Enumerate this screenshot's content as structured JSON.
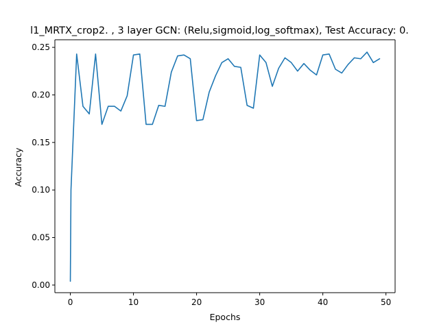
{
  "chart_data": {
    "type": "line",
    "title": "l1_MRTX_crop2. , 3 layer GCN: (Relu,sigmoid,log_softmax), Test Accuracy: 0.",
    "xlabel": "Epochs",
    "ylabel": "Accuracy",
    "xlim": [
      -2.45,
      51.45
    ],
    "ylim": [
      -0.008,
      0.258
    ],
    "xticks": [
      0,
      10,
      20,
      30,
      40,
      50
    ],
    "yticks": [
      0.0,
      0.05,
      0.1,
      0.15,
      0.2,
      0.25
    ],
    "xtick_labels": [
      "0",
      "10",
      "20",
      "30",
      "40",
      "50"
    ],
    "ytick_labels": [
      "0.00",
      "0.05",
      "0.10",
      "0.15",
      "0.20",
      "0.25"
    ],
    "grid": false,
    "color": "#1f77b4",
    "series": [
      {
        "x": [
          0,
          1,
          2,
          3,
          4,
          5,
          6,
          7,
          8,
          9,
          10,
          11,
          12,
          13,
          14,
          15,
          16,
          17,
          18,
          19,
          20,
          21,
          22,
          23,
          24,
          25,
          26,
          27,
          28,
          29,
          30,
          31,
          32,
          33,
          34,
          35,
          36,
          37,
          38,
          39,
          40,
          41,
          42,
          43,
          44,
          45,
          46,
          47,
          48,
          49
        ],
        "y": [
          0.004,
          0.243,
          0.188,
          0.18,
          0.243,
          0.169,
          0.188,
          0.188,
          0.183,
          0.199,
          0.242,
          0.243,
          0.169,
          0.169,
          0.189,
          0.188,
          0.224,
          0.241,
          0.242,
          0.238,
          0.173,
          0.174,
          0.203,
          0.22,
          0.234,
          0.238,
          0.23,
          0.229,
          0.189,
          0.186,
          0.242,
          0.234,
          0.209,
          0.228,
          0.239,
          0.234,
          0.225,
          0.233,
          0.226,
          0.221,
          0.242,
          0.243,
          0.227,
          0.223,
          0.232,
          0.239,
          0.238,
          0.245,
          0.234,
          0.238
        ],
        "start_y": 0.1
      }
    ]
  }
}
